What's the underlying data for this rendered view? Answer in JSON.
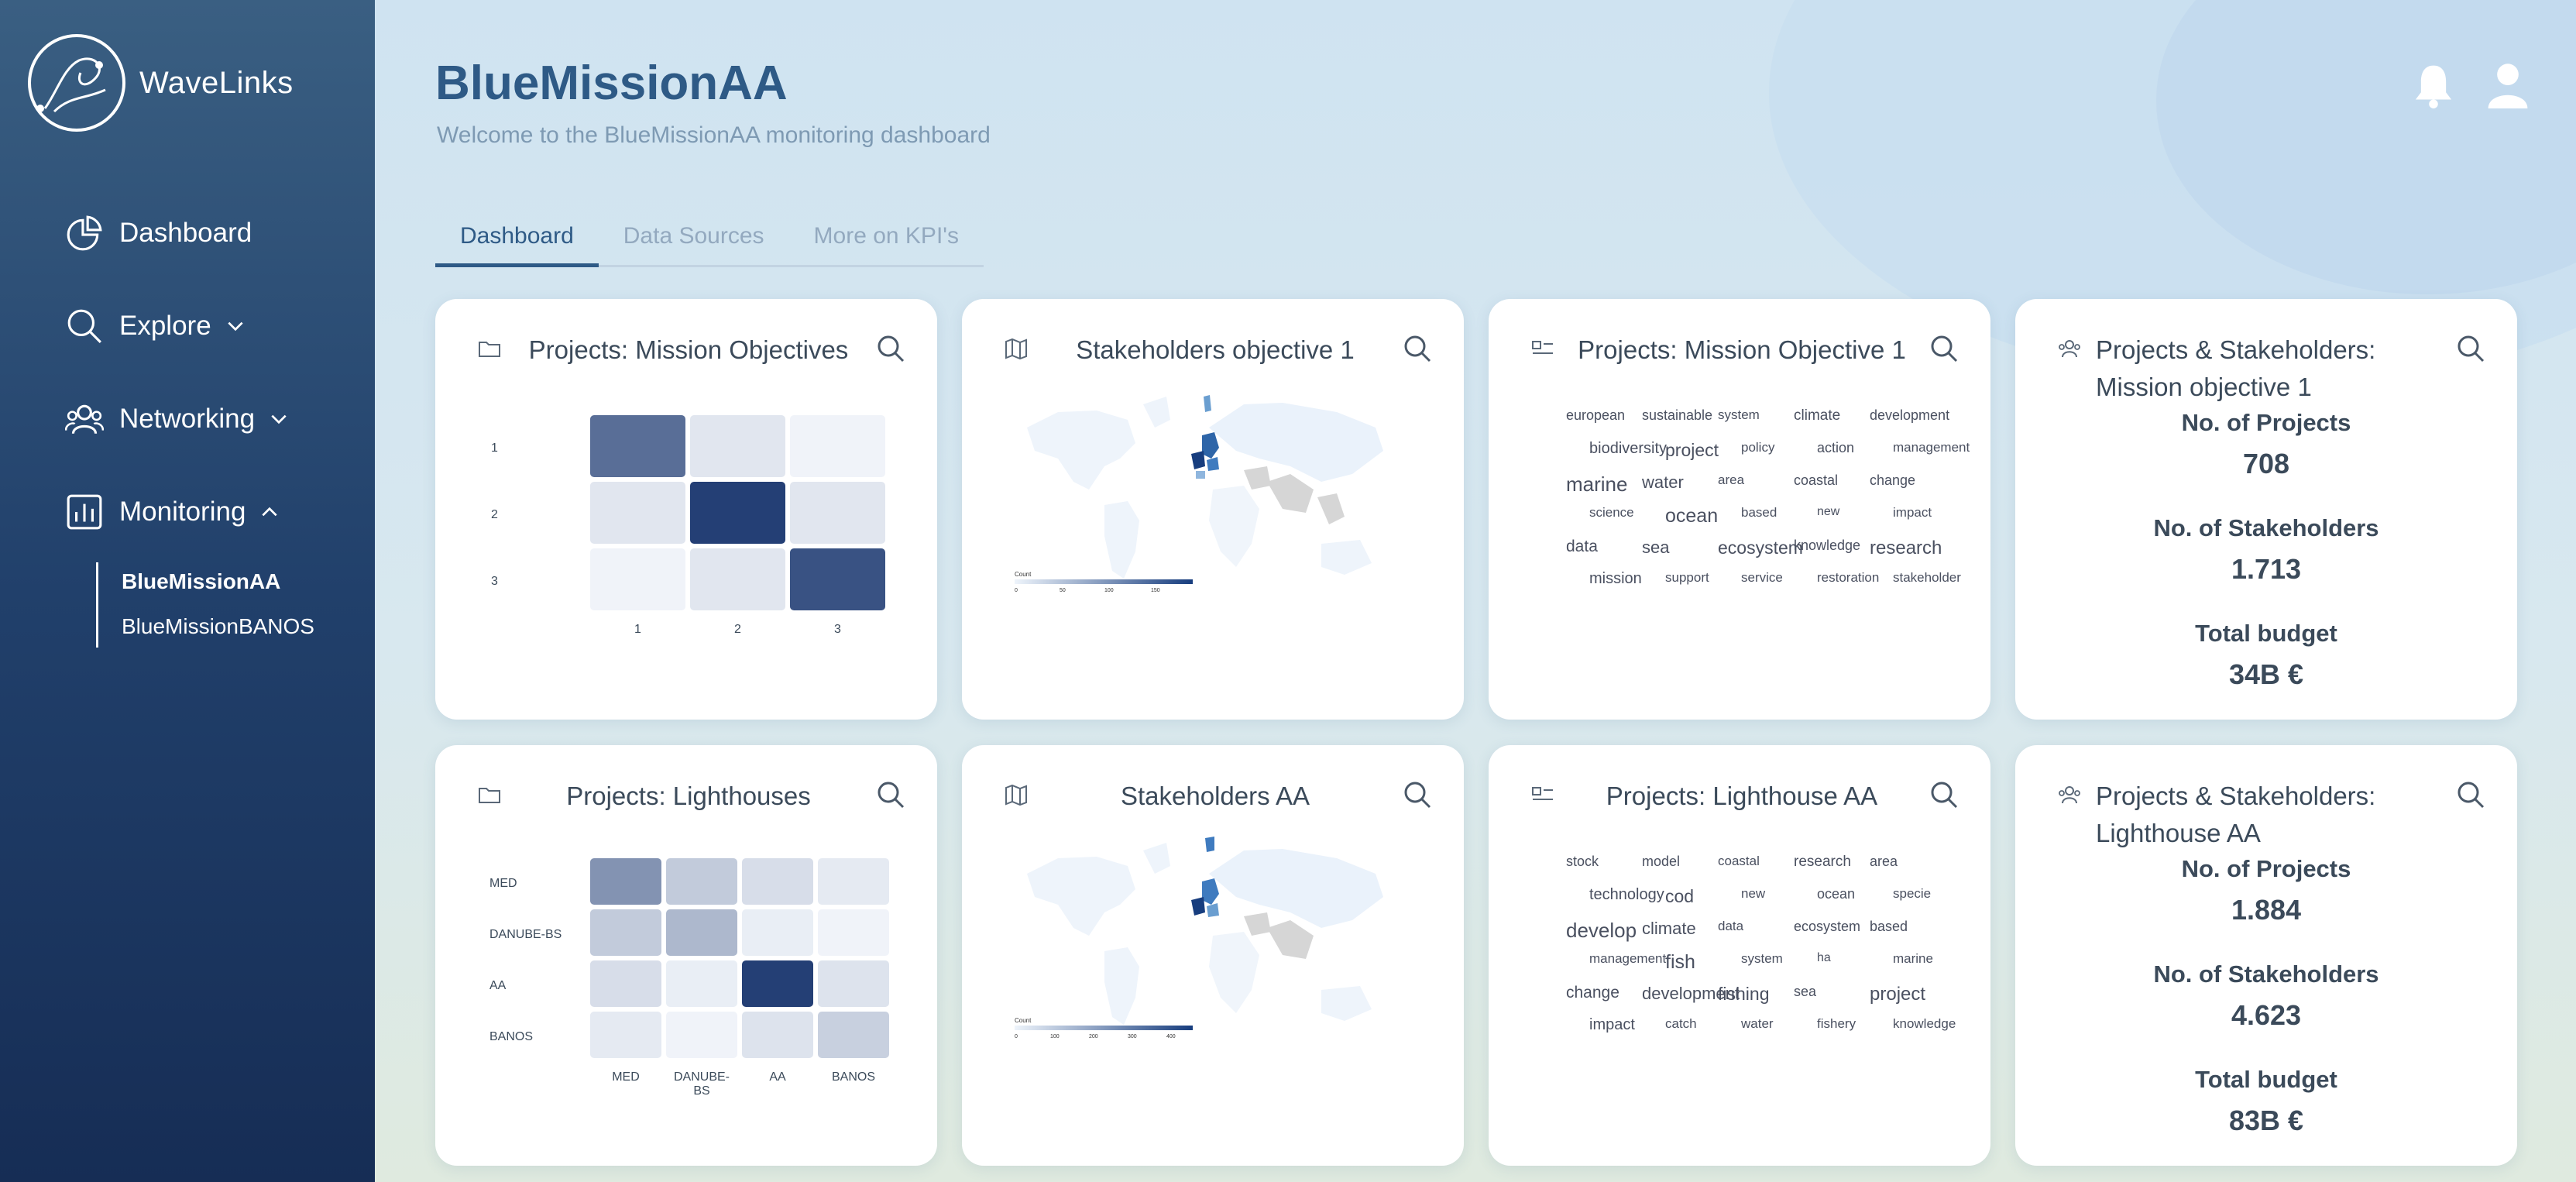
{
  "sidebar": {
    "logo_text": "WaveLinks",
    "nav": [
      {
        "label": "Dashboard",
        "icon": "pie-chart-icon"
      },
      {
        "label": "Explore",
        "icon": "search-icon"
      },
      {
        "label": "Networking",
        "icon": "users-icon"
      },
      {
        "label": "Monitoring",
        "icon": "bar-chart-icon"
      }
    ],
    "sub_items": [
      "BlueMissionAA",
      "BlueMissionBANOS"
    ]
  },
  "header": {
    "title": "BlueMissionAA",
    "subtitle": "Welcome to the BlueMissionAA monitoring dashboard"
  },
  "tabs": [
    "Dashboard",
    "Data Sources",
    "More on KPI's"
  ],
  "cards": {
    "c1": {
      "title": "Projects: Mission Objectives",
      "icon": "folder-icon",
      "row_labels": [
        "1",
        "2",
        "3"
      ],
      "col_labels": [
        "1",
        "2",
        "3"
      ],
      "values": [
        [
          0.75,
          0.1,
          0.03
        ],
        [
          0.1,
          1.0,
          0.1
        ],
        [
          0.03,
          0.1,
          0.9
        ]
      ]
    },
    "c2": {
      "title": "Stakeholders objective 1",
      "icon": "map-icon",
      "legend_title": "Count",
      "legend_ticks": [
        "0",
        "50",
        "100",
        "150"
      ]
    },
    "c3": {
      "title": "Projects: Mission Objective 1",
      "icon": "wordcloud-icon",
      "words": [
        "european",
        "sustainable",
        "system",
        "climate",
        "development",
        "biodiversity",
        "project",
        "policy",
        "action",
        "management",
        "marine",
        "water",
        "area",
        "coastal",
        "change",
        "science",
        "ocean",
        "based",
        "new",
        "impact",
        "data",
        "sea",
        "ecosystem",
        "knowledge",
        "research",
        "mission",
        "support",
        "service",
        "restoration",
        "stakeholder"
      ]
    },
    "c4": {
      "title": "Projects & Stakeholders: Mission objective 1",
      "icon": "users-icon",
      "projects_label": "No. of Projects",
      "projects_value": "708",
      "stakeholders_label": "No. of Stakeholders",
      "stakeholders_value": "1.713",
      "budget_label": "Total budget",
      "budget_value": "34B €"
    },
    "c5": {
      "title": "Projects: Lighthouses",
      "icon": "folder-icon",
      "row_labels": [
        "MED",
        "DANUBE-BS",
        "AA",
        "BANOS"
      ],
      "col_labels": [
        "MED",
        "DANUBE-BS",
        "AA",
        "BANOS"
      ],
      "values": [
        [
          0.55,
          0.25,
          0.15,
          0.08
        ],
        [
          0.25,
          0.35,
          0.06,
          0.03
        ],
        [
          0.15,
          0.06,
          1.0,
          0.12
        ],
        [
          0.08,
          0.03,
          0.12,
          0.22
        ]
      ]
    },
    "c6": {
      "title": "Stakeholders AA",
      "icon": "map-icon",
      "legend_title": "Count",
      "legend_ticks": [
        "0",
        "100",
        "200",
        "300",
        "400"
      ]
    },
    "c7": {
      "title": "Projects: Lighthouse AA",
      "icon": "wordcloud-icon",
      "words": [
        "stock",
        "model",
        "coastal",
        "research",
        "area",
        "technology",
        "cod",
        "new",
        "ocean",
        "specie",
        "develop",
        "climate",
        "data",
        "ecosystem",
        "based",
        "management",
        "fish",
        "system",
        "ha",
        "marine",
        "change",
        "development",
        "fishing",
        "sea",
        "project",
        "impact",
        "catch",
        "water",
        "fishery",
        "knowledge"
      ]
    },
    "c8": {
      "title": "Projects & Stakeholders: Lighthouse AA",
      "icon": "users-icon",
      "projects_label": "No. of Projects",
      "projects_value": "1.884",
      "stakeholders_label": "No. of Stakeholders",
      "stakeholders_value": "4.623",
      "budget_label": "Total budget",
      "budget_value": "83B €"
    }
  },
  "colors": {
    "accent": "#2e5a86",
    "heat_max": "#243f75",
    "heat_min": "#f6f9fd"
  }
}
